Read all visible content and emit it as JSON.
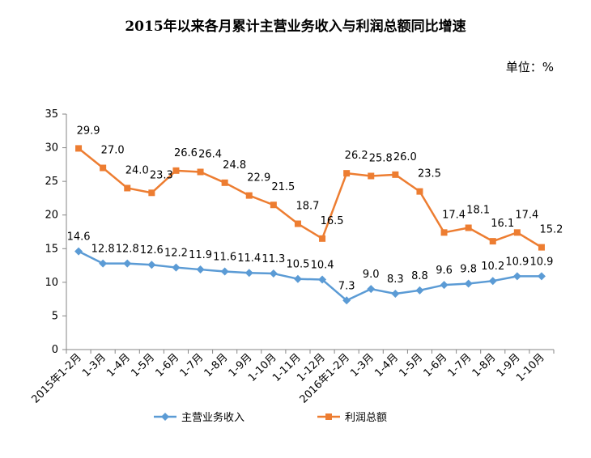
{
  "chart_data": {
    "type": "line",
    "title": "2015年以来各月累计主营业务收入与利润总额同比增速",
    "unit": "单位：%",
    "categories": [
      "2015年1-2月",
      "1-3月",
      "1-4月",
      "1-5月",
      "1-6月",
      "1-7月",
      "1-8月",
      "1-9月",
      "1-10月",
      "1-11月",
      "1-12月",
      "2016年1-2月",
      "1-3月",
      "1-4月",
      "1-5月",
      "1-6月",
      "1-7月",
      "1-8月",
      "1-9月",
      "1-10月"
    ],
    "ylim": [
      0,
      35
    ],
    "yticks": [
      0,
      5,
      10,
      15,
      20,
      25,
      30,
      35
    ],
    "grid": false,
    "legend_position": "bottom",
    "series": [
      {
        "name": "主营业务收入",
        "color": "#5B9BD5",
        "marker": "diamond",
        "values": [
          14.6,
          12.8,
          12.8,
          12.6,
          12.2,
          11.9,
          11.6,
          11.4,
          11.3,
          10.5,
          10.4,
          7.3,
          9.0,
          8.3,
          8.8,
          9.6,
          9.8,
          10.2,
          10.9,
          10.9
        ],
        "labels": [
          "14.6",
          "12.8",
          "12.8",
          "12.6",
          "12.2",
          "11.9",
          "11.6",
          "11.4",
          "11.3",
          "10.5",
          "10.4",
          "7.3",
          "9.0",
          "8.3",
          "8.8",
          "9.6",
          "9.8",
          "10.2",
          "10.9",
          "10.9"
        ]
      },
      {
        "name": "利润总额",
        "color": "#ED7D31",
        "marker": "square",
        "values": [
          29.9,
          27.0,
          24.0,
          23.3,
          26.6,
          26.4,
          24.8,
          22.9,
          21.5,
          18.7,
          16.5,
          26.2,
          25.8,
          26.0,
          23.5,
          17.4,
          18.1,
          16.1,
          17.4,
          15.2
        ],
        "labels": [
          "29.9",
          "27.0",
          "24.0",
          "23.3",
          "26.6",
          "26.4",
          "24.8",
          "22.9",
          "21.5",
          "18.7",
          "16.5",
          "26.2",
          "25.8",
          "26.0",
          "23.5",
          "17.4",
          "18.1",
          "16.1",
          "17.4",
          "15.2"
        ]
      }
    ]
  }
}
